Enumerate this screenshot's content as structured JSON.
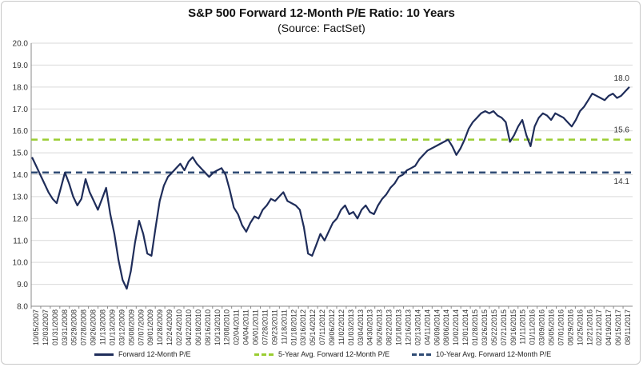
{
  "chart_data": {
    "type": "line",
    "title": "S&P 500 Forward 12-Month P/E Ratio: 10 Years",
    "subtitle": "(Source: FactSet)",
    "ylim": [
      8.0,
      20.0
    ],
    "yticks": [
      "8.0",
      "9.0",
      "10.0",
      "11.0",
      "12.0",
      "13.0",
      "14.0",
      "15.0",
      "16.0",
      "17.0",
      "18.0",
      "19.0",
      "20.0"
    ],
    "grid": true,
    "legend_position": "bottom",
    "x_tick_labels": [
      "10/05/2007",
      "12/03/2007",
      "01/31/2008",
      "03/31/2008",
      "05/29/2008",
      "07/28/2008",
      "09/26/2008",
      "11/13/2008",
      "01/13/2009",
      "03/12/2009",
      "05/08/2009",
      "07/07/2009",
      "09/01/2009",
      "10/28/2009",
      "12/24/2009",
      "02/24/2010",
      "04/22/2010",
      "06/18/2010",
      "08/16/2010",
      "10/13/2010",
      "12/08/2010",
      "02/04/2011",
      "04/04/2011",
      "06/01/2011",
      "07/28/2011",
      "09/23/2011",
      "11/18/2011",
      "01/18/2012",
      "03/16/2012",
      "05/14/2012",
      "07/11/2012",
      "09/06/2012",
      "11/02/2012",
      "01/03/2013",
      "03/04/2013",
      "04/30/2013",
      "06/26/2013",
      "08/22/2013",
      "10/18/2013",
      "12/16/2013",
      "02/13/2014",
      "04/11/2014",
      "06/09/2014",
      "08/06/2014",
      "10/02/2014",
      "12/01/2014",
      "01/28/2015",
      "03/26/2015",
      "05/22/2015",
      "07/21/2015",
      "09/16/2015",
      "11/11/2015",
      "01/11/2016",
      "03/09/2016",
      "05/05/2016",
      "07/01/2016",
      "08/29/2016",
      "10/25/2016",
      "12/21/2016",
      "02/21/2017",
      "04/19/2017",
      "06/15/2017",
      "08/11/2017"
    ],
    "series": [
      {
        "name": "Forward 12-Month P/E",
        "color": "#1f2d5a",
        "style": "solid",
        "values": [
          14.8,
          14.4,
          14.0,
          13.6,
          13.2,
          12.9,
          12.7,
          13.4,
          14.1,
          13.6,
          13.0,
          12.6,
          12.9,
          13.8,
          13.2,
          12.8,
          12.4,
          12.9,
          13.4,
          12.2,
          11.3,
          10.1,
          9.2,
          8.8,
          9.6,
          10.9,
          11.9,
          11.3,
          10.4,
          10.3,
          11.6,
          12.8,
          13.5,
          13.9,
          14.1,
          14.3,
          14.5,
          14.2,
          14.6,
          14.8,
          14.5,
          14.3,
          14.1,
          13.9,
          14.1,
          14.2,
          14.3,
          14.0,
          13.3,
          12.5,
          12.2,
          11.7,
          11.4,
          11.8,
          12.1,
          12.0,
          12.4,
          12.6,
          12.9,
          12.8,
          13.0,
          13.2,
          12.8,
          12.7,
          12.6,
          12.4,
          11.6,
          10.4,
          10.3,
          10.8,
          11.3,
          11.0,
          11.4,
          11.8,
          12.0,
          12.4,
          12.6,
          12.2,
          12.3,
          12.0,
          12.4,
          12.6,
          12.3,
          12.2,
          12.6,
          12.9,
          13.1,
          13.4,
          13.6,
          13.9,
          14.0,
          14.2,
          14.3,
          14.4,
          14.7,
          14.9,
          15.1,
          15.2,
          15.3,
          15.4,
          15.5,
          15.6,
          15.3,
          14.9,
          15.2,
          15.6,
          16.1,
          16.4,
          16.6,
          16.8,
          16.9,
          16.8,
          16.9,
          16.7,
          16.6,
          16.4,
          15.5,
          15.8,
          16.2,
          16.5,
          15.8,
          15.3,
          16.2,
          16.6,
          16.8,
          16.7,
          16.5,
          16.8,
          16.7,
          16.6,
          16.4,
          16.2,
          16.5,
          16.9,
          17.1,
          17.4,
          17.7,
          17.6,
          17.5,
          17.4,
          17.6,
          17.7,
          17.5,
          17.6,
          17.8,
          18.0
        ]
      },
      {
        "name": "5-Year Avg. Forward 12-Month P/E",
        "color": "#9acd32",
        "style": "dashed",
        "value": 15.6
      },
      {
        "name": "10-Year Avg. Forward 12-Month P/E",
        "color": "#2e4a73",
        "style": "dashed",
        "value": 14.1
      }
    ],
    "end_labels": [
      "18.0",
      "15.6",
      "14.1"
    ]
  }
}
